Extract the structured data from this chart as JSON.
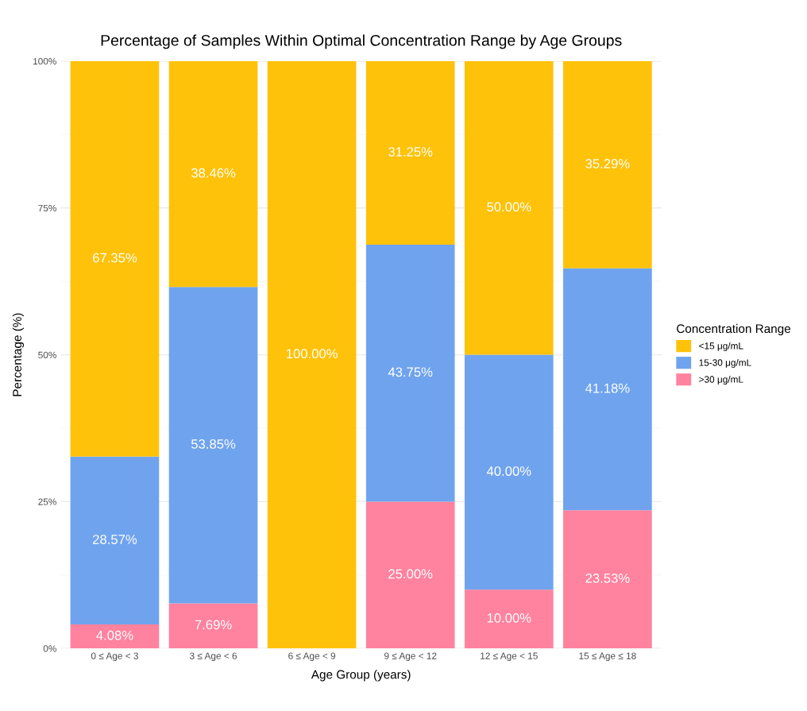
{
  "chart_data": {
    "type": "bar",
    "stacked": true,
    "title": "Percentage of Samples Within Optimal Concentration Range by Age Groups",
    "xlabel": "Age Group (years)",
    "ylabel": "Percentage (%)",
    "legend_title": "Concentration Range",
    "categories": [
      "0 ≤ Age < 3",
      "3 ≤ Age < 6",
      "6 ≤ Age < 9",
      "9 ≤ Age < 12",
      "12 ≤ Age < 15",
      "15 ≤ Age ≤ 18"
    ],
    "series": [
      {
        "name": ">30 μg/mL",
        "color": "#ff829e",
        "values": [
          4.08,
          7.69,
          0,
          25.0,
          10.0,
          23.53
        ],
        "value_labels": [
          "4.08%",
          "7.69%",
          null,
          "25.00%",
          "10.00%",
          "23.53%"
        ]
      },
      {
        "name": "15-30 μg/mL",
        "color": "#6fa3ee",
        "values": [
          28.57,
          53.85,
          0,
          43.75,
          40.0,
          41.18
        ],
        "value_labels": [
          "28.57%",
          "53.85%",
          null,
          "43.75%",
          "40.00%",
          "41.18%"
        ]
      },
      {
        "name": "<15 μg/mL",
        "color": "#ffc20a",
        "values": [
          67.35,
          38.46,
          100.0,
          31.25,
          50.0,
          35.29
        ],
        "value_labels": [
          "67.35%",
          "38.46%",
          "100.00%",
          "31.25%",
          "50.00%",
          "35.29%"
        ]
      }
    ],
    "ylim": [
      0,
      100
    ],
    "yticks": [
      {
        "value": 0,
        "label": "0%"
      },
      {
        "value": 25,
        "label": "25%"
      },
      {
        "value": 50,
        "label": "50%"
      },
      {
        "value": 75,
        "label": "75%"
      },
      {
        "value": 100,
        "label": "100%"
      }
    ],
    "grid": true,
    "legend": "right"
  }
}
